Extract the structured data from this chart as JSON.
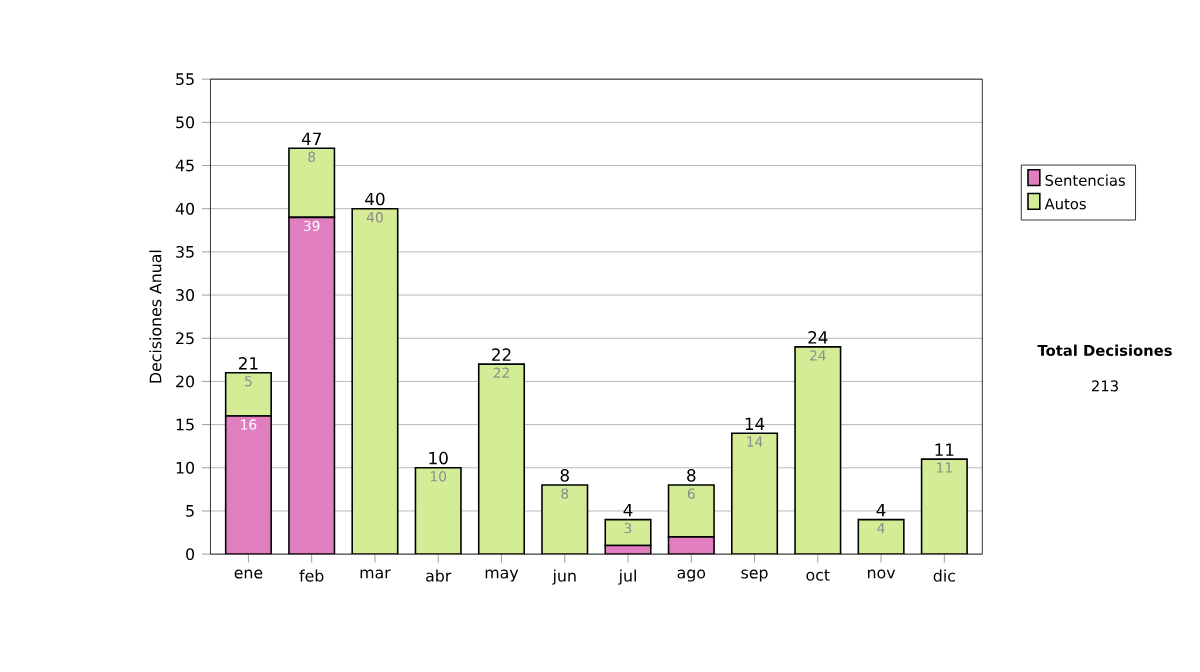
{
  "chart_data": {
    "type": "bar",
    "stacked": true,
    "ylabel": "Decisiones Anual",
    "categories": [
      "ene",
      "feb",
      "mar",
      "abr",
      "may",
      "jun",
      "jul",
      "ago",
      "sep",
      "oct",
      "nov",
      "dic"
    ],
    "series": [
      {
        "name": "Sentencias",
        "color": "#e07ec0",
        "values": [
          16,
          39,
          0,
          0,
          0,
          0,
          1,
          2,
          0,
          0,
          0,
          0
        ],
        "value_labels": [
          "16",
          "39",
          null,
          null,
          null,
          null,
          null,
          null,
          null,
          null,
          null,
          null
        ]
      },
      {
        "name": "Autos",
        "color": "#d4ec96",
        "values": [
          5,
          8,
          40,
          10,
          22,
          8,
          3,
          6,
          14,
          24,
          4,
          11
        ],
        "value_labels": [
          "5",
          "8",
          "40",
          "10",
          "22",
          "8",
          "3",
          "6",
          "14",
          "24",
          "4",
          "11"
        ]
      }
    ],
    "totals": [
      "21",
      "47",
      "40",
      "10",
      "22",
      "8",
      "4",
      "8",
      "14",
      "24",
      "4",
      "11"
    ],
    "ylim": [
      0,
      55
    ],
    "yticks": [
      0,
      5,
      10,
      15,
      20,
      25,
      30,
      35,
      40,
      45,
      50,
      55
    ],
    "grid": "y",
    "legend": "right",
    "annotations": [
      "Total Decisiones",
      "213"
    ]
  }
}
